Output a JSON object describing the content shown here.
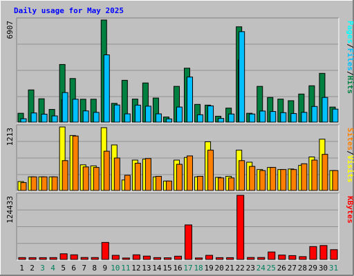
{
  "chart_data": {
    "type": "bar",
    "title": "Daily usage for May 2025",
    "x": [
      "1",
      "2",
      "3",
      "4",
      "5",
      "6",
      "7",
      "8",
      "9",
      "10",
      "11",
      "12",
      "13",
      "14",
      "15",
      "16",
      "17",
      "18",
      "19",
      "20",
      "21",
      "22",
      "23",
      "24",
      "25",
      "26",
      "27",
      "28",
      "29",
      "30",
      "31"
    ],
    "weekend_days": [
      "3",
      "4",
      "10",
      "11",
      "17",
      "18",
      "24",
      "25",
      "31"
    ],
    "panels": [
      {
        "name": "hits-files-pages",
        "ymax_label": "6907",
        "ymax": 6907,
        "right_label": {
          "parts": [
            "Pages",
            "/",
            "Files",
            "/",
            "Hits"
          ]
        },
        "series": [
          {
            "name": "Hits",
            "values": [
              600,
              2180,
              1580,
              860,
              3900,
              2950,
              1550,
              1550,
              6907,
              1270,
              2830,
              1560,
              2650,
              1630,
              350,
              2420,
              3650,
              1200,
              1150,
              400,
              950,
              6450,
              600,
              2420,
              1670,
              1560,
              1450,
              1900,
              2460,
              3300,
              1020
            ]
          },
          {
            "name": "Files",
            "values": [
              230,
              620,
              540,
              420,
              2000,
              1550,
              760,
              660,
              4550,
              1160,
              560,
              1150,
              1080,
              560,
              220,
              1020,
              3050,
              500,
              1100,
              250,
              550,
              6120,
              550,
              750,
              720,
              640,
              580,
              660,
              1060,
              1670,
              880
            ]
          },
          {
            "name": "Pages",
            "values": [
              0,
              0,
              0,
              0,
              1520,
              0,
              0,
              0,
              0,
              0,
              0,
              0,
              0,
              0,
              0,
              0,
              0,
              0,
              0,
              0,
              0,
              4200,
              0,
              0,
              0,
              0,
              0,
              0,
              0,
              0,
              0
            ]
          }
        ]
      },
      {
        "name": "visits-sites",
        "ymax_label": "1213",
        "ymax": 1213,
        "right_label": {
          "parts": [
            "Sites",
            "/",
            "Visits"
          ]
        },
        "series": [
          {
            "name": "Visits",
            "values": [
              170,
              260,
              260,
              260,
              1213,
              1050,
              490,
              470,
              1200,
              870,
              200,
              580,
              600,
              260,
              180,
              580,
              630,
              260,
              930,
              250,
              270,
              770,
              540,
              400,
              440,
              400,
              410,
              480,
              640,
              980,
              380
            ]
          },
          {
            "name": "Sites",
            "values": [
              150,
              260,
              260,
              260,
              570,
              1040,
              450,
              440,
              750,
              620,
              290,
              520,
              610,
              270,
              180,
              500,
              660,
              270,
              770,
              240,
              240,
              570,
              460,
              380,
              440,
              400,
              400,
              510,
              580,
              690,
              380
            ]
          }
        ]
      },
      {
        "name": "kbytes",
        "ymax_label": "124433",
        "ymax": 124433,
        "right_label": {
          "parts": [
            "KBytes"
          ]
        },
        "series": [
          {
            "name": "KBytes",
            "values": [
              3600,
              3500,
              3500,
              3600,
              11000,
              9000,
              3800,
              3700,
              33000,
              8000,
              2800,
              9000,
              6500,
              3600,
              3200,
              6300,
              67000,
              2900,
              8000,
              3500,
              3500,
              124433,
              3800,
              3800,
              14500,
              8500,
              7500,
              5500,
              25000,
              27000,
              19000
            ]
          }
        ]
      }
    ],
    "colors": {
      "hits": "#008040",
      "files": "#00c0ff",
      "pages": "#00ffff",
      "visits": "#ffff00",
      "sites": "#ff8000",
      "kbytes": "#ff0000",
      "title": "#0000ff",
      "panel_bg": "#c0c0c0",
      "frame_bg": "#c0c0c0",
      "weekday_label": "#000000",
      "weekend_label": "#00805c"
    }
  }
}
